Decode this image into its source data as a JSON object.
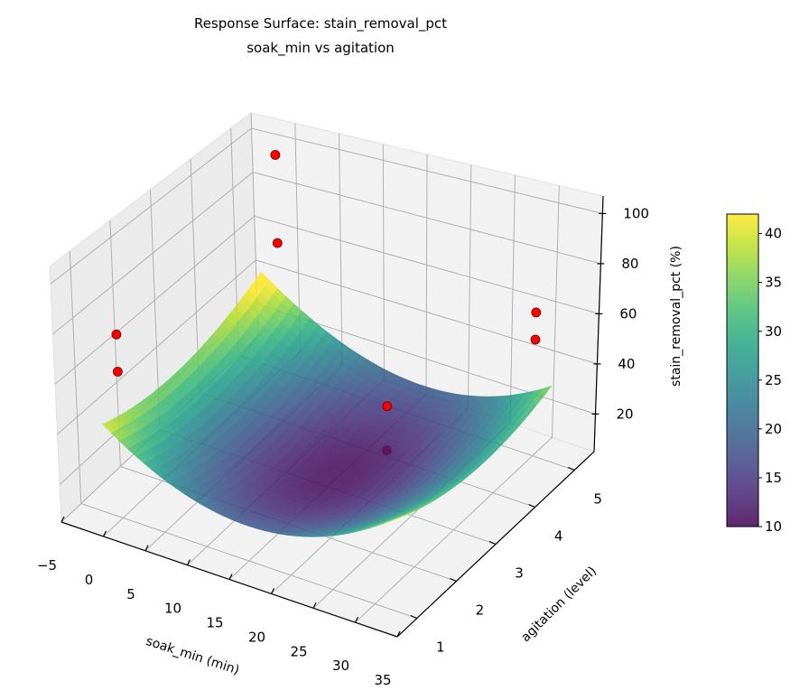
{
  "chart_data": {
    "type": "surface3d",
    "title": "Response Surface: stain_removal_pct",
    "subtitle": "soak_min vs agitation",
    "xlabel": "soak_min (min)",
    "ylabel": "agitation (level)",
    "zlabel": "stain_removal_pct (%)",
    "xlim": [
      -5,
      35
    ],
    "ylim": [
      0.5,
      5.5
    ],
    "zlim": [
      5,
      107
    ],
    "x_ticks": [
      "−5",
      "0",
      "5",
      "10",
      "15",
      "20",
      "25",
      "30",
      "35"
    ],
    "x_tick_values": [
      -5,
      0,
      5,
      10,
      15,
      20,
      25,
      30,
      35
    ],
    "y_ticks": [
      "1",
      "2",
      "3",
      "4",
      "5"
    ],
    "y_tick_values": [
      1,
      2,
      3,
      4,
      5
    ],
    "z_ticks": [
      "20",
      "40",
      "60",
      "80",
      "100"
    ],
    "z_tick_values": [
      20,
      40,
      60,
      80,
      100
    ],
    "grid": true,
    "surface": {
      "x_range": [
        -2,
        32
      ],
      "y_range": [
        1,
        5
      ],
      "model": "z = 11 + 0.075(x-15)^2 + 2(y-3)^2 - 0.08(x-15)(y-3) - 0.15(x-15)",
      "colormap": "viridis",
      "alpha": 0.85
    },
    "points": [
      {
        "x": 0,
        "y": 5,
        "z": 100
      },
      {
        "x": 0,
        "y": 5,
        "z": 61
      },
      {
        "x": 0,
        "y": 1,
        "z": 79
      },
      {
        "x": 0,
        "y": 1,
        "z": 64
      },
      {
        "x": 30,
        "y": 5,
        "z": 63
      },
      {
        "x": 30,
        "y": 5,
        "z": 52
      },
      {
        "x": 22,
        "y": 3,
        "z": 46
      },
      {
        "x": 22,
        "y": 3,
        "z": 28
      }
    ],
    "point_color": "#ff0000",
    "colorbar": {
      "range": [
        10,
        42
      ],
      "ticks": [
        "10",
        "15",
        "20",
        "25",
        "30",
        "35",
        "40"
      ],
      "tick_values": [
        10,
        15,
        20,
        25,
        30,
        35,
        40
      ]
    }
  }
}
